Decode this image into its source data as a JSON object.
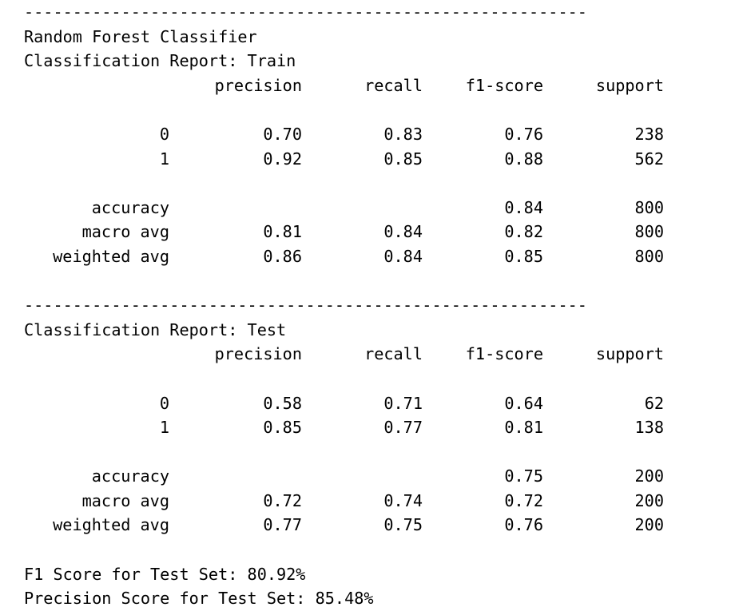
{
  "separator": "----------------------------------------------------------",
  "model_title": "Random Forest Classifier",
  "columns": {
    "precision": "precision",
    "recall": "recall",
    "f1": "f1-score",
    "support": "support"
  },
  "train": {
    "title": "Classification Report: Train",
    "class_rows": [
      {
        "label": "0",
        "precision": "0.70",
        "recall": "0.83",
        "f1": "0.76",
        "support": "238"
      },
      {
        "label": "1",
        "precision": "0.92",
        "recall": "0.85",
        "f1": "0.88",
        "support": "562"
      }
    ],
    "summary_rows": [
      {
        "label": "accuracy",
        "precision": "",
        "recall": "",
        "f1": "0.84",
        "support": "800"
      },
      {
        "label": "macro avg",
        "precision": "0.81",
        "recall": "0.84",
        "f1": "0.82",
        "support": "800"
      },
      {
        "label": "weighted avg",
        "precision": "0.86",
        "recall": "0.84",
        "f1": "0.85",
        "support": "800"
      }
    ]
  },
  "test": {
    "title": "Classification Report: Test",
    "class_rows": [
      {
        "label": "0",
        "precision": "0.58",
        "recall": "0.71",
        "f1": "0.64",
        "support": "62"
      },
      {
        "label": "1",
        "precision": "0.85",
        "recall": "0.77",
        "f1": "0.81",
        "support": "138"
      }
    ],
    "summary_rows": [
      {
        "label": "accuracy",
        "precision": "",
        "recall": "",
        "f1": "0.75",
        "support": "200"
      },
      {
        "label": "macro avg",
        "precision": "0.72",
        "recall": "0.74",
        "f1": "0.72",
        "support": "200"
      },
      {
        "label": "weighted avg",
        "precision": "0.77",
        "recall": "0.75",
        "f1": "0.76",
        "support": "200"
      }
    ]
  },
  "footer": {
    "f1_line": "F1 Score for Test Set: 80.92%",
    "precision_line": "Precision Score for Test Set: 85.48%"
  }
}
